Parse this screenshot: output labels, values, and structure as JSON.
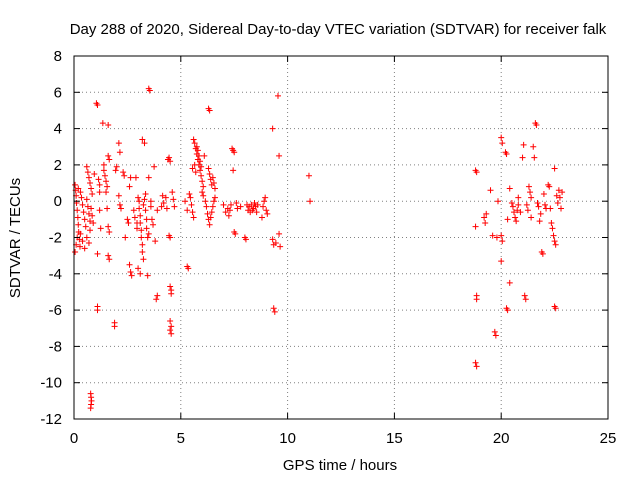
{
  "chart_data": {
    "type": "scatter",
    "title": "Day 288 of 2020, Sidereal Day-to-day VTEC variation (SDTVAR) for receiver falk",
    "xlabel": "GPS time / hours",
    "ylabel": "SDTVAR / TECUs",
    "xlim": [
      0,
      25
    ],
    "ylim": [
      -12,
      8
    ],
    "xticks": [
      0,
      5,
      10,
      15,
      20,
      25
    ],
    "yticks": [
      -12,
      -10,
      -8,
      -6,
      -4,
      -2,
      0,
      2,
      4,
      6,
      8
    ],
    "grid": true,
    "marker": "+",
    "color": "#ff0000",
    "series": [
      {
        "name": "SDTVAR",
        "points": [
          [
            0.05,
            0.9
          ],
          [
            0.08,
            0.6
          ],
          [
            0.1,
            0.3
          ],
          [
            0.12,
            -0.1
          ],
          [
            0.15,
            -0.5
          ],
          [
            0.18,
            -0.9
          ],
          [
            0.2,
            -1.3
          ],
          [
            0.22,
            -1.7
          ],
          [
            0.25,
            -2.1
          ],
          [
            0.28,
            -2.5
          ],
          [
            0.05,
            -2.8
          ],
          [
            0.1,
            -2.4
          ],
          [
            0.15,
            -2.0
          ],
          [
            0.2,
            0.7
          ],
          [
            0.3,
            0.5
          ],
          [
            0.35,
            0.2
          ],
          [
            0.4,
            -0.2
          ],
          [
            0.45,
            -0.6
          ],
          [
            0.5,
            -1.0
          ],
          [
            0.55,
            -1.4
          ],
          [
            0.3,
            -1.8
          ],
          [
            0.4,
            -2.2
          ],
          [
            0.5,
            -2.6
          ],
          [
            0.6,
            0.1
          ],
          [
            0.65,
            -0.3
          ],
          [
            0.7,
            -0.7
          ],
          [
            0.75,
            -1.1
          ],
          [
            0.6,
            -2.0
          ],
          [
            0.7,
            -2.3
          ],
          [
            0.75,
            -1.6
          ],
          [
            0.6,
            1.9
          ],
          [
            0.65,
            1.6
          ],
          [
            0.7,
            1.3
          ],
          [
            0.75,
            1.0
          ],
          [
            0.8,
            0.7
          ],
          [
            0.85,
            0.4
          ],
          [
            0.8,
            -0.4
          ],
          [
            0.85,
            -0.8
          ],
          [
            0.9,
            -1.2
          ],
          [
            0.95,
            1.5
          ],
          [
            0.78,
            -10.6
          ],
          [
            0.8,
            -10.8
          ],
          [
            0.82,
            -11.0
          ],
          [
            0.8,
            -11.2
          ],
          [
            0.78,
            -11.4
          ],
          [
            1.05,
            5.4
          ],
          [
            1.1,
            5.3
          ],
          [
            1.1,
            -5.8
          ],
          [
            1.1,
            -6.0
          ],
          [
            1.1,
            -2.9
          ],
          [
            1.15,
            1.2
          ],
          [
            1.2,
            0.9
          ],
          [
            1.2,
            0.5
          ],
          [
            1.2,
            -0.5
          ],
          [
            1.25,
            -1.5
          ],
          [
            1.35,
            4.3
          ],
          [
            1.4,
            2.0
          ],
          [
            1.4,
            1.7
          ],
          [
            1.45,
            1.4
          ],
          [
            1.5,
            1.1
          ],
          [
            1.55,
            0.8
          ],
          [
            1.5,
            0.5
          ],
          [
            1.55,
            -0.4
          ],
          [
            1.6,
            4.2
          ],
          [
            1.6,
            2.5
          ],
          [
            1.65,
            2.3
          ],
          [
            1.6,
            -1.4
          ],
          [
            1.65,
            -1.7
          ],
          [
            1.6,
            -3.0
          ],
          [
            1.65,
            -3.2
          ],
          [
            1.9,
            -6.7
          ],
          [
            1.9,
            -6.9
          ],
          [
            1.95,
            1.7
          ],
          [
            2.0,
            1.9
          ],
          [
            2.1,
            3.2
          ],
          [
            2.15,
            2.7
          ],
          [
            2.1,
            0.3
          ],
          [
            2.15,
            -0.2
          ],
          [
            2.2,
            -0.4
          ],
          [
            2.3,
            1.6
          ],
          [
            2.35,
            1.4
          ],
          [
            2.4,
            -2.0
          ],
          [
            2.5,
            -1.0
          ],
          [
            2.55,
            -1.2
          ],
          [
            2.6,
            0.8
          ],
          [
            2.65,
            1.3
          ],
          [
            2.6,
            -3.5
          ],
          [
            2.65,
            -3.9
          ],
          [
            2.7,
            -4.1
          ],
          [
            2.8,
            -0.5
          ],
          [
            2.85,
            -0.9
          ],
          [
            2.9,
            1.3
          ],
          [
            2.95,
            -1.2
          ],
          [
            2.95,
            -1.5
          ],
          [
            3.0,
            0.2
          ],
          [
            3.05,
            0.0
          ],
          [
            3.05,
            -0.4
          ],
          [
            3.1,
            -0.8
          ],
          [
            3.1,
            -1.2
          ],
          [
            3.15,
            -1.6
          ],
          [
            3.15,
            -2.0
          ],
          [
            3.2,
            -2.4
          ],
          [
            3.2,
            -2.8
          ],
          [
            3.25,
            -3.2
          ],
          [
            3.0,
            -3.7
          ],
          [
            3.1,
            -4.0
          ],
          [
            3.2,
            3.4
          ],
          [
            3.3,
            3.2
          ],
          [
            3.25,
            -0.2
          ],
          [
            3.3,
            0.1
          ],
          [
            3.35,
            0.4
          ],
          [
            3.35,
            -0.5
          ],
          [
            3.4,
            -1.0
          ],
          [
            3.4,
            -1.5
          ],
          [
            3.45,
            -2.0
          ],
          [
            3.45,
            -4.1
          ],
          [
            3.5,
            -1.8
          ],
          [
            3.5,
            1.3
          ],
          [
            3.5,
            6.2
          ],
          [
            3.55,
            6.1
          ],
          [
            3.6,
            0.0
          ],
          [
            3.6,
            -0.3
          ],
          [
            3.65,
            -1.0
          ],
          [
            3.7,
            -1.3
          ],
          [
            3.75,
            1.9
          ],
          [
            3.8,
            -2.2
          ],
          [
            3.85,
            -5.4
          ],
          [
            3.9,
            -5.2
          ],
          [
            3.9,
            -0.5
          ],
          [
            4.1,
            -0.3
          ],
          [
            4.15,
            0.3
          ],
          [
            4.2,
            -0.1
          ],
          [
            4.3,
            0.2
          ],
          [
            4.35,
            -0.4
          ],
          [
            4.4,
            2.3
          ],
          [
            4.45,
            2.4
          ],
          [
            4.5,
            2.2
          ],
          [
            4.45,
            -1.9
          ],
          [
            4.5,
            -2.0
          ],
          [
            4.5,
            -4.7
          ],
          [
            4.55,
            -4.9
          ],
          [
            4.55,
            -5.1
          ],
          [
            4.5,
            -6.6
          ],
          [
            4.55,
            -6.9
          ],
          [
            4.5,
            -7.1
          ],
          [
            4.55,
            -7.3
          ],
          [
            4.6,
            0.5
          ],
          [
            4.65,
            0.1
          ],
          [
            4.7,
            -0.3
          ],
          [
            5.2,
            0.0
          ],
          [
            5.3,
            -0.5
          ],
          [
            5.3,
            -3.6
          ],
          [
            5.35,
            -3.7
          ],
          [
            5.4,
            0.4
          ],
          [
            5.45,
            0.2
          ],
          [
            5.5,
            -0.2
          ],
          [
            5.55,
            -0.6
          ],
          [
            5.6,
            -0.9
          ],
          [
            5.55,
            1.8
          ],
          [
            5.6,
            3.4
          ],
          [
            5.65,
            3.2
          ],
          [
            5.7,
            2.9
          ],
          [
            5.75,
            2.6
          ],
          [
            5.8,
            2.3
          ],
          [
            5.85,
            2.0
          ],
          [
            5.9,
            1.7
          ],
          [
            5.95,
            1.4
          ],
          [
            6.0,
            1.1
          ],
          [
            6.05,
            0.8
          ],
          [
            5.65,
            2.0
          ],
          [
            5.7,
            1.6
          ],
          [
            5.75,
            3.0
          ],
          [
            5.8,
            2.8
          ],
          [
            5.85,
            2.5
          ],
          [
            5.9,
            2.2
          ],
          [
            5.95,
            1.9
          ],
          [
            6.0,
            0.5
          ],
          [
            6.05,
            0.3
          ],
          [
            6.1,
            2.5
          ],
          [
            6.15,
            0.0
          ],
          [
            6.2,
            -0.3
          ],
          [
            6.25,
            -0.7
          ],
          [
            6.3,
            -1.0
          ],
          [
            6.35,
            -1.3
          ],
          [
            6.4,
            -0.9
          ],
          [
            6.45,
            -0.6
          ],
          [
            6.5,
            -0.3
          ],
          [
            6.55,
            0.0
          ],
          [
            6.6,
            0.2
          ],
          [
            6.3,
            5.1
          ],
          [
            6.35,
            5.0
          ],
          [
            6.3,
            1.8
          ],
          [
            6.35,
            1.5
          ],
          [
            6.4,
            1.2
          ],
          [
            6.45,
            0.9
          ],
          [
            6.5,
            1.3
          ],
          [
            6.55,
            1.0
          ],
          [
            6.6,
            0.7
          ],
          [
            7.0,
            -0.2
          ],
          [
            7.1,
            -0.6
          ],
          [
            7.2,
            -0.4
          ],
          [
            7.25,
            -0.8
          ],
          [
            7.3,
            -0.5
          ],
          [
            7.35,
            -0.2
          ],
          [
            7.4,
            2.9
          ],
          [
            7.45,
            2.8
          ],
          [
            7.5,
            2.7
          ],
          [
            7.45,
            1.7
          ],
          [
            7.5,
            -1.7
          ],
          [
            7.55,
            -1.8
          ],
          [
            7.6,
            -0.1
          ],
          [
            7.65,
            -0.4
          ],
          [
            7.8,
            -0.3
          ],
          [
            8.0,
            -2.0
          ],
          [
            8.05,
            -2.1
          ],
          [
            8.1,
            -0.2
          ],
          [
            8.15,
            -0.5
          ],
          [
            8.2,
            -0.3
          ],
          [
            8.25,
            -0.6
          ],
          [
            8.3,
            -0.2
          ],
          [
            8.35,
            -0.5
          ],
          [
            8.4,
            -0.4
          ],
          [
            8.45,
            -0.1
          ],
          [
            8.5,
            -0.3
          ],
          [
            8.55,
            -0.6
          ],
          [
            8.6,
            -0.2
          ],
          [
            8.8,
            -0.9
          ],
          [
            8.85,
            -0.3
          ],
          [
            8.9,
            0.0
          ],
          [
            8.95,
            0.2
          ],
          [
            9.0,
            -0.5
          ],
          [
            9.05,
            -0.7
          ],
          [
            9.3,
            4.0
          ],
          [
            9.3,
            -2.1
          ],
          [
            9.35,
            -2.4
          ],
          [
            9.35,
            -5.9
          ],
          [
            9.4,
            -6.1
          ],
          [
            9.45,
            -2.3
          ],
          [
            9.55,
            5.8
          ],
          [
            9.6,
            2.5
          ],
          [
            9.6,
            -1.8
          ],
          [
            9.65,
            -2.5
          ],
          [
            11.0,
            1.4
          ],
          [
            11.05,
            0.0
          ],
          [
            18.8,
            1.7
          ],
          [
            18.85,
            1.6
          ],
          [
            18.8,
            -1.4
          ],
          [
            18.85,
            -5.2
          ],
          [
            18.85,
            -5.4
          ],
          [
            18.8,
            -8.9
          ],
          [
            18.85,
            -9.1
          ],
          [
            19.2,
            -0.9
          ],
          [
            19.25,
            -1.2
          ],
          [
            19.3,
            -0.7
          ],
          [
            19.5,
            0.6
          ],
          [
            19.6,
            -1.9
          ],
          [
            19.7,
            -7.2
          ],
          [
            19.75,
            -7.4
          ],
          [
            19.8,
            -2.0
          ],
          [
            19.85,
            0.0
          ],
          [
            20.0,
            3.5
          ],
          [
            20.05,
            3.2
          ],
          [
            20.0,
            -1.9
          ],
          [
            20.05,
            -2.2
          ],
          [
            20.0,
            -3.3
          ],
          [
            20.2,
            2.7
          ],
          [
            20.25,
            2.6
          ],
          [
            20.25,
            -5.9
          ],
          [
            20.3,
            -6.0
          ],
          [
            20.3,
            -1.0
          ],
          [
            20.4,
            0.7
          ],
          [
            20.4,
            -4.5
          ],
          [
            20.5,
            -0.1
          ],
          [
            20.55,
            -0.3
          ],
          [
            20.6,
            -0.6
          ],
          [
            20.65,
            -0.9
          ],
          [
            20.7,
            -1.1
          ],
          [
            20.75,
            -0.5
          ],
          [
            20.8,
            -0.2
          ],
          [
            20.8,
            0.2
          ],
          [
            20.9,
            -0.6
          ],
          [
            21.0,
            2.4
          ],
          [
            21.05,
            3.1
          ],
          [
            21.1,
            -5.2
          ],
          [
            21.15,
            -5.4
          ],
          [
            21.2,
            -0.2
          ],
          [
            21.25,
            -0.5
          ],
          [
            21.3,
            0.8
          ],
          [
            21.35,
            0.5
          ],
          [
            21.4,
            0.2
          ],
          [
            21.4,
            -0.9
          ],
          [
            21.5,
            3.0
          ],
          [
            21.55,
            2.4
          ],
          [
            21.6,
            4.3
          ],
          [
            21.65,
            4.2
          ],
          [
            21.7,
            -0.1
          ],
          [
            21.75,
            -0.3
          ],
          [
            21.8,
            -1.1
          ],
          [
            21.85,
            -0.7
          ],
          [
            21.9,
            -2.8
          ],
          [
            21.95,
            -2.9
          ],
          [
            22.0,
            0.4
          ],
          [
            22.05,
            -0.2
          ],
          [
            22.1,
            -0.4
          ],
          [
            22.2,
            0.9
          ],
          [
            22.25,
            0.8
          ],
          [
            22.3,
            -0.4
          ],
          [
            22.35,
            -1.2
          ],
          [
            22.4,
            -1.5
          ],
          [
            22.45,
            -1.9
          ],
          [
            22.5,
            1.8
          ],
          [
            22.5,
            -2.2
          ],
          [
            22.55,
            -2.4
          ],
          [
            22.5,
            -5.8
          ],
          [
            22.55,
            -5.9
          ],
          [
            22.6,
            0.3
          ],
          [
            22.65,
            -0.1
          ],
          [
            22.7,
            0.6
          ],
          [
            22.75,
            0.2
          ],
          [
            22.8,
            -0.4
          ],
          [
            22.85,
            0.5
          ]
        ]
      }
    ]
  }
}
